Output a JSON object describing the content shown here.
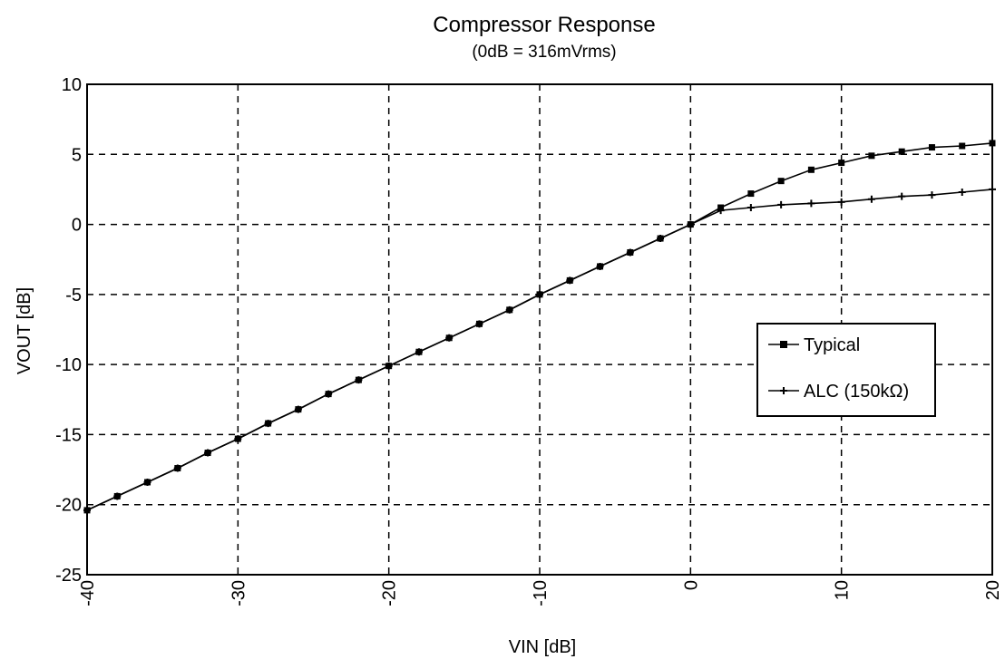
{
  "chart_data": {
    "type": "line",
    "title": "Compressor Response",
    "subtitle": "(0dB = 316mVrms)",
    "xlabel": "VIN [dB]",
    "ylabel": "VOUT [dB]",
    "xlim": [
      -40,
      20
    ],
    "ylim": [
      -25,
      10
    ],
    "x_ticks": [
      "-40",
      "-30",
      "-20",
      "-10",
      "0",
      "10",
      "20"
    ],
    "y_ticks": [
      "10",
      "5",
      "0",
      "-5",
      "-10",
      "-15",
      "-20",
      "-25"
    ],
    "grid": true,
    "legend_position": "right",
    "series": [
      {
        "name": "Typical",
        "marker": "square",
        "x": [
          -40,
          -38,
          -36,
          -34,
          -32,
          -30,
          -28,
          -26,
          -24,
          -22,
          -20,
          -18,
          -16,
          -14,
          -12,
          -10,
          -8,
          -6,
          -4,
          -2,
          0,
          2,
          4,
          6,
          8,
          10,
          12,
          14,
          16,
          18,
          20
        ],
        "y": [
          -20.4,
          -19.4,
          -18.4,
          -17.4,
          -16.3,
          -15.3,
          -14.2,
          -13.2,
          -12.1,
          -11.1,
          -10.1,
          -9.1,
          -8.1,
          -7.1,
          -6.1,
          -5.0,
          -4.0,
          -3.0,
          -2.0,
          -1.0,
          0.0,
          1.2,
          2.2,
          3.1,
          3.9,
          4.4,
          4.9,
          5.2,
          5.5,
          5.6,
          5.8
        ]
      },
      {
        "name": "ALC (150kΩ)",
        "marker": "plus",
        "x": [
          -40,
          -38,
          -36,
          -34,
          -32,
          -30,
          -28,
          -26,
          -24,
          -22,
          -20,
          -18,
          -16,
          -14,
          -12,
          -10,
          -8,
          -6,
          -4,
          -2,
          0,
          2,
          4,
          6,
          8,
          10,
          12,
          14,
          16,
          18,
          20
        ],
        "y": [
          -20.4,
          -19.4,
          -18.4,
          -17.4,
          -16.3,
          -15.3,
          -14.2,
          -13.2,
          -12.1,
          -11.1,
          -10.1,
          -9.1,
          -8.1,
          -7.1,
          -6.1,
          -5.0,
          -4.0,
          -3.0,
          -2.0,
          -1.0,
          0.0,
          1.0,
          1.2,
          1.4,
          1.5,
          1.6,
          1.8,
          2.0,
          2.1,
          2.3,
          2.5
        ]
      }
    ]
  }
}
